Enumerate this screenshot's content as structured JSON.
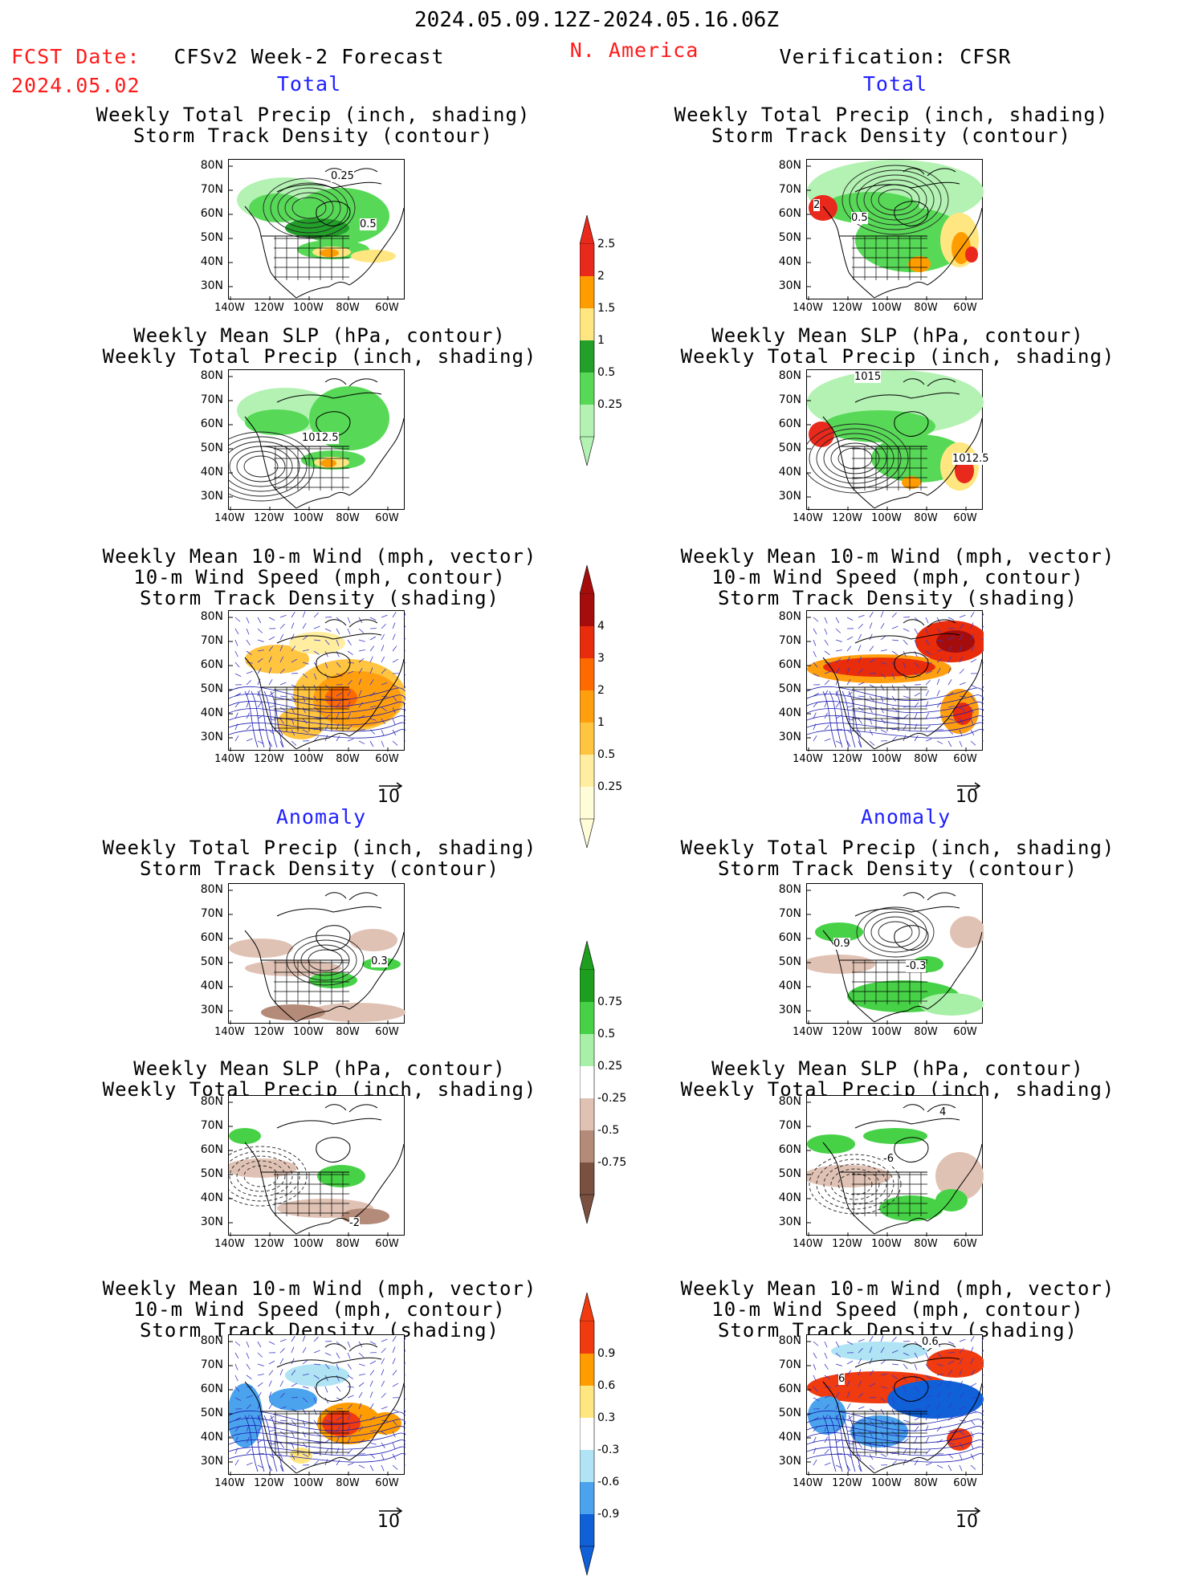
{
  "header": {
    "date_range": "2024.05.09.12Z-2024.05.16.06Z",
    "region": "N. America",
    "fcst_label": "FCST Date:",
    "fcst_date": "2024.05.02",
    "forecast_title": "CFSv2 Week-2 Forecast",
    "verification_title": "Verification: CFSR"
  },
  "sections": {
    "total": "Total",
    "anomaly": "Anomaly"
  },
  "panel_titles": {
    "precip_storm": [
      "Weekly Total Precip (inch, shading)",
      "Storm Track Density (contour)"
    ],
    "slp_precip": [
      "Weekly Mean SLP (hPa, contour)",
      "Weekly Total Precip (inch, shading)"
    ],
    "wind_storm": [
      "Weekly Mean 10-m Wind (mph, vector)",
      "10-m Wind Speed (mph, contour)",
      "Storm Track Density (shading)"
    ]
  },
  "axes": {
    "lat_ticks": [
      "80N",
      "70N",
      "60N",
      "50N",
      "40N",
      "30N"
    ],
    "lon_ticks": [
      "140W",
      "120W",
      "100W",
      "80W",
      "60W"
    ]
  },
  "vector_ref": "10",
  "colorbars": {
    "precip_total": {
      "labels": [
        "2.5",
        "2",
        "1.5",
        "1",
        "0.5",
        "0.25"
      ],
      "colors": [
        "#e8291c",
        "#ff9d00",
        "#ffe680",
        "#22a02a",
        "#57d957",
        "#b3f2b3"
      ]
    },
    "storm_total": {
      "labels": [
        "4",
        "3",
        "2",
        "1",
        "0.5",
        "0.25"
      ],
      "colors": [
        "#a50d0d",
        "#e82c0c",
        "#ff6a00",
        "#ff9f10",
        "#ffc440",
        "#ffeea0",
        "#fffdd8"
      ]
    },
    "precip_anom": {
      "labels": [
        "0.75",
        "0.5",
        "0.25",
        "-0.25",
        "-0.5",
        "-0.75"
      ],
      "colors": [
        "#1e9e1e",
        "#47d147",
        "#a8f0a8",
        "#ffffff",
        "#e0c2b4",
        "#b48a78",
        "#7a5040"
      ]
    },
    "storm_anom": {
      "labels": [
        "0.9",
        "0.6",
        "0.3",
        "-0.3",
        "-0.6",
        "-0.9"
      ],
      "colors": [
        "#f03a10",
        "#ff9d00",
        "#ffe680",
        "#ffffff",
        "#b0e4f4",
        "#4aa3ec",
        "#1060d8"
      ]
    }
  },
  "contour_labels": {
    "fc_precip_total": [
      "0.25",
      "0.5"
    ],
    "vf_precip_total": [
      "2",
      "0.5"
    ],
    "fc_slp_total": [
      "1012.5"
    ],
    "vf_slp_total": [
      "1015",
      "1012.5"
    ],
    "fc_precip_anom": [
      "0.3"
    ],
    "vf_precip_anom": [
      "0.9",
      "-0.3"
    ],
    "fc_slp_anom": [
      "-2"
    ],
    "vf_slp_anom": [
      "4",
      "-6"
    ],
    "vf_wind_anom": [
      "0.6",
      "6"
    ]
  }
}
